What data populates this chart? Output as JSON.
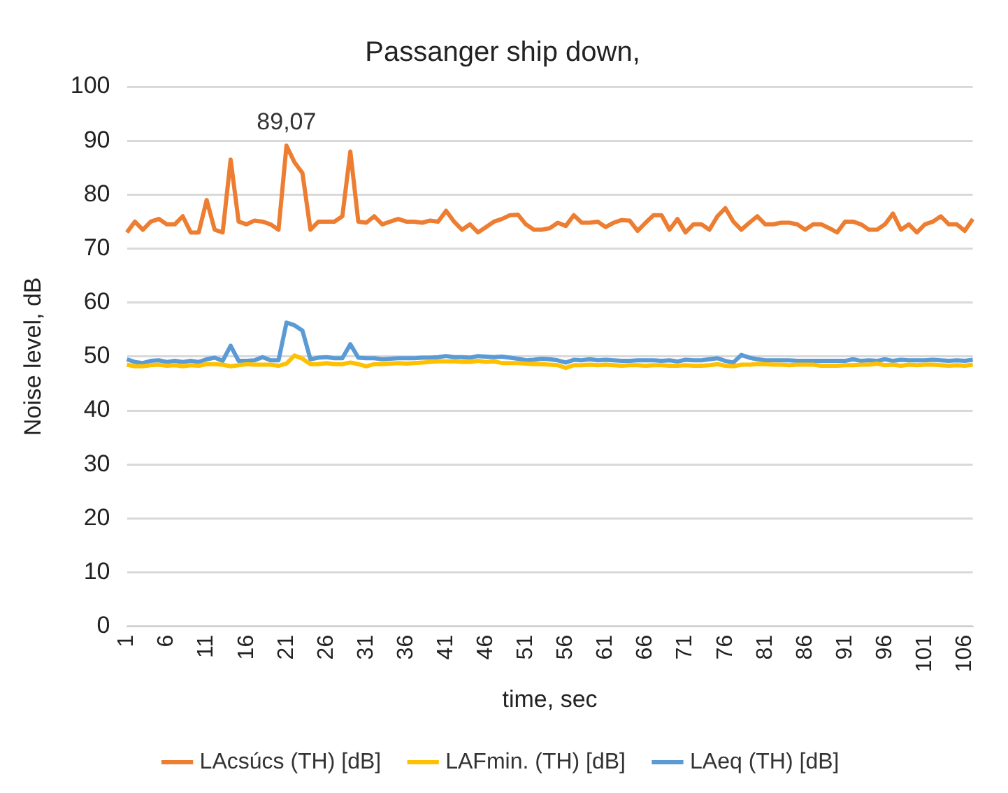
{
  "chart_data": {
    "type": "line",
    "title": "Passanger ship down,",
    "xlabel": "time, sec",
    "ylabel": "Noise level, dB",
    "categories": [
      "1",
      null,
      null,
      null,
      null,
      "6",
      null,
      null,
      null,
      null,
      "11",
      null,
      null,
      null,
      null,
      "16",
      null,
      null,
      null,
      null,
      "21",
      null,
      null,
      null,
      null,
      "26",
      null,
      null,
      null,
      null,
      "31",
      null,
      null,
      null,
      null,
      "36",
      null,
      null,
      null,
      null,
      "41",
      null,
      null,
      null,
      null,
      "46",
      null,
      null,
      null,
      null,
      "51",
      null,
      null,
      null,
      null,
      "56",
      null,
      null,
      null,
      null,
      "61",
      null,
      null,
      null,
      null,
      "66",
      null,
      null,
      null,
      null,
      "71",
      null,
      null,
      null,
      null,
      "76",
      null,
      null,
      null,
      null,
      "81",
      null,
      null,
      null,
      null,
      "86",
      null,
      null,
      null,
      null,
      "91",
      null,
      null,
      null,
      null,
      "96",
      null,
      null,
      null,
      null,
      "101",
      null,
      null,
      null,
      null,
      "106",
      null
    ],
    "series": [
      {
        "name": "LAcsúcs (TH) [dB]",
        "color": "#ed7d31",
        "values": [
          73,
          75,
          73.5,
          75,
          75.5,
          74.5,
          74.5,
          76,
          73,
          73,
          79,
          73.5,
          73,
          86.5,
          75,
          74.5,
          75.2,
          75,
          74.5,
          73.5,
          89.07,
          86,
          84,
          73.5,
          75,
          75,
          75,
          76,
          88,
          75,
          74.8,
          76,
          74.5,
          75,
          75.5,
          75,
          75,
          74.8,
          75.2,
          75,
          77,
          75,
          73.5,
          74.5,
          73,
          74,
          75,
          75.5,
          76.2,
          76.3,
          74.5,
          73.5,
          73.5,
          73.8,
          74.8,
          74.2,
          76.2,
          74.8,
          74.8,
          75,
          74,
          74.8,
          75.3,
          75.2,
          73.3,
          74.8,
          76.2,
          76.2,
          73.5,
          75.5,
          73,
          74.5,
          74.5,
          73.5,
          76,
          77.5,
          75,
          73.5,
          74.8,
          76,
          74.5,
          74.5,
          74.8,
          74.8,
          74.5,
          73.5,
          74.5,
          74.5,
          73.8,
          73,
          75,
          75,
          74.5,
          73.5,
          73.5,
          74.5,
          76.5,
          73.5,
          74.5,
          73,
          74.5,
          75,
          76,
          74.5,
          74.5,
          73.3,
          75.5
        ],
        "value_labels": [
          null,
          null,
          null,
          null,
          null,
          null,
          null,
          null,
          null,
          null,
          null,
          null,
          null,
          null,
          null,
          null,
          null,
          null,
          null,
          null,
          "89,07",
          null,
          null,
          null,
          null,
          null,
          null,
          null,
          null,
          null,
          null,
          null,
          null,
          null,
          null,
          null,
          null,
          null,
          null,
          null,
          null,
          null,
          null,
          null,
          null,
          null,
          null,
          null,
          null,
          null,
          null,
          null,
          null,
          null,
          null,
          null,
          null,
          null,
          null,
          null,
          null,
          null,
          null,
          null,
          null,
          null,
          null,
          null,
          null,
          null,
          null,
          null,
          null,
          null,
          null,
          null,
          null,
          null,
          null,
          null,
          null,
          null,
          null,
          null,
          null,
          null,
          null,
          null,
          null,
          null,
          null,
          null,
          null,
          null,
          null,
          null,
          null,
          null,
          null,
          null,
          null,
          null,
          null,
          null,
          null,
          null,
          null
        ]
      },
      {
        "name": "LAFmin. (TH) [dB]",
        "color": "#ffc000",
        "values": [
          48.5,
          48.2,
          48.2,
          48.4,
          48.5,
          48.3,
          48.4,
          48.2,
          48.4,
          48.3,
          48.6,
          48.6,
          48.5,
          48.2,
          48.4,
          48.6,
          48.5,
          48.5,
          48.5,
          48.3,
          48.7,
          50.2,
          49.6,
          48.6,
          48.6,
          48.8,
          48.6,
          48.6,
          48.9,
          48.6,
          48.2,
          48.6,
          48.6,
          48.7,
          48.8,
          48.7,
          48.8,
          48.9,
          49,
          49.1,
          49.1,
          49.1,
          49,
          49,
          49.2,
          49,
          49.1,
          48.8,
          48.8,
          48.8,
          48.7,
          48.6,
          48.6,
          48.5,
          48.4,
          47.9,
          48.4,
          48.4,
          48.5,
          48.4,
          48.5,
          48.4,
          48.3,
          48.4,
          48.4,
          48.3,
          48.4,
          48.4,
          48.3,
          48.3,
          48.4,
          48.3,
          48.3,
          48.4,
          48.6,
          48.3,
          48.2,
          48.5,
          48.5,
          48.6,
          48.6,
          48.5,
          48.5,
          48.4,
          48.5,
          48.5,
          48.5,
          48.3,
          48.3,
          48.3,
          48.4,
          48.4,
          48.5,
          48.5,
          48.7,
          48.4,
          48.5,
          48.3,
          48.5,
          48.4,
          48.5,
          48.5,
          48.4,
          48.3,
          48.4,
          48.3,
          48.5
        ]
      },
      {
        "name": "LAeq (TH) [dB]",
        "color": "#5b9bd5",
        "values": [
          49.5,
          49,
          48.8,
          49.2,
          49.3,
          49,
          49.2,
          49,
          49.2,
          49,
          49.5,
          49.8,
          49.2,
          52,
          49.2,
          49.2,
          49.3,
          49.9,
          49.3,
          49.3,
          56.3,
          55.8,
          54.8,
          49.5,
          49.8,
          49.9,
          49.7,
          49.7,
          52.3,
          49.8,
          49.7,
          49.7,
          49.5,
          49.6,
          49.7,
          49.7,
          49.7,
          49.8,
          49.8,
          49.9,
          50.1,
          49.9,
          49.9,
          49.8,
          50.1,
          50,
          49.9,
          50,
          49.8,
          49.6,
          49.3,
          49.4,
          49.6,
          49.5,
          49.3,
          48.9,
          49.4,
          49.3,
          49.5,
          49.3,
          49.4,
          49.3,
          49.2,
          49.2,
          49.3,
          49.3,
          49.3,
          49.2,
          49.3,
          49.1,
          49.4,
          49.3,
          49.3,
          49.5,
          49.7,
          49.2,
          48.9,
          50.3,
          49.8,
          49.5,
          49.3,
          49.3,
          49.3,
          49.3,
          49.2,
          49.2,
          49.2,
          49.2,
          49.2,
          49.2,
          49.2,
          49.5,
          49.2,
          49.3,
          49.2,
          49.5,
          49.2,
          49.4,
          49.3,
          49.3,
          49.3,
          49.4,
          49.3,
          49.2,
          49.3,
          49.2,
          49.4
        ]
      }
    ],
    "ylim": [
      0,
      100
    ],
    "yticks": [
      0,
      10,
      20,
      30,
      40,
      50,
      60,
      70,
      80,
      90,
      100
    ],
    "grid": "y",
    "legend": "bottom",
    "marker": "none",
    "line_style": "solid"
  }
}
